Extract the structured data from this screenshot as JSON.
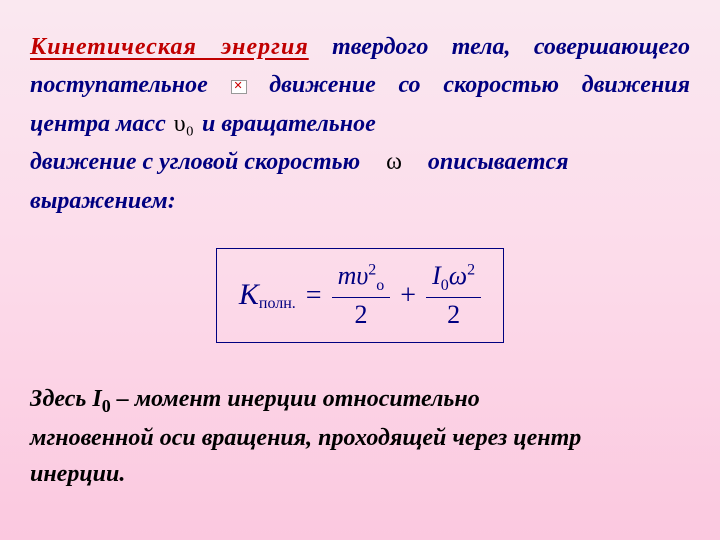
{
  "intro": {
    "title": "Кинетическая  энергия",
    "part1": " твердого тела, совершающего поступательное ",
    "part2": " движение со скоростью  движения центра масс ",
    "v0": "υ₀",
    "part3": " и вращательное",
    "part4": "движение с угловой скоростью ",
    "omega": "ω",
    "part5": " описывается",
    "part6": "выражением:"
  },
  "formula": {
    "K": "K",
    "K_sub": "полн.",
    "eq": "=",
    "frac1_num_m": "m",
    "frac1_num_v": "υ",
    "frac1_num_sup": "2",
    "frac1_num_sub": "о",
    "frac1_den": "2",
    "plus": "+",
    "frac2_num_I": "I",
    "frac2_num_Isub": "0",
    "frac2_num_w": "ω",
    "frac2_num_sup": "2",
    "frac2_den": "2"
  },
  "explanation": {
    "t1": "Здесь I",
    "sub0": "0",
    "t2": " – момент инерции относительно мгновенной оси вращения, проходящей через центр инерции."
  },
  "colors": {
    "title": "#c00000",
    "body": "#000080",
    "formula_border": "#000080",
    "explanation": "#000000"
  }
}
